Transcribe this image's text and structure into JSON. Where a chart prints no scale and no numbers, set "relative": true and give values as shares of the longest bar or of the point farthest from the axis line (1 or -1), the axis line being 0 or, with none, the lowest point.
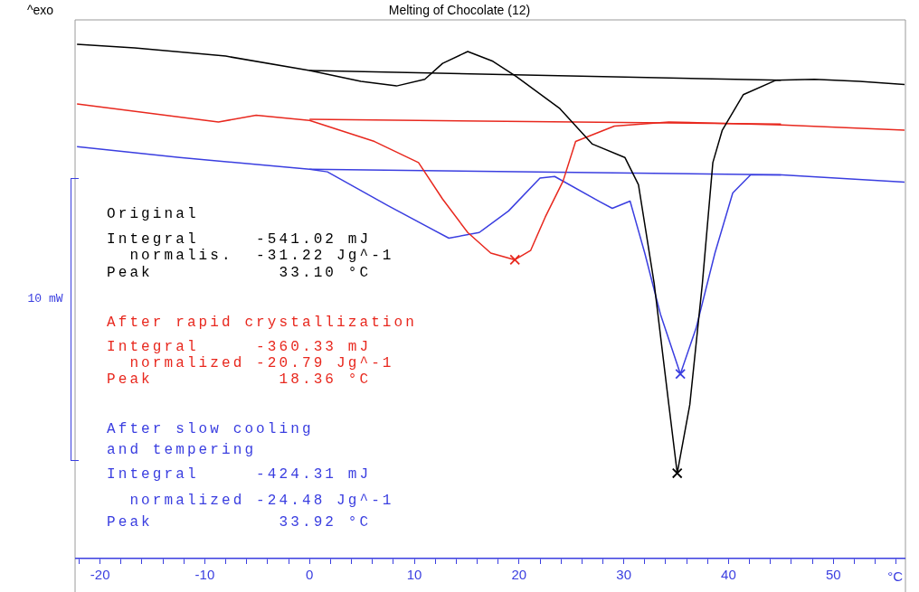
{
  "chart_data": {
    "type": "line",
    "title": "Melting of Chocolate (12)",
    "xlabel": "°C",
    "relative": true,
    "xlim": [
      -22.3,
      56.8
    ],
    "xticks": [
      {
        "value": -22,
        "label": null
      },
      -20,
      {
        "value": -18,
        "label": null
      },
      {
        "value": -16,
        "label": null
      },
      {
        "value": -14,
        "label": null
      },
      {
        "value": -12,
        "label": null
      },
      -10,
      {
        "value": -8,
        "label": null
      },
      {
        "value": -6,
        "label": null
      },
      {
        "value": -4,
        "label": null
      },
      {
        "value": -2,
        "label": null
      },
      0,
      {
        "value": 2,
        "label": null
      },
      {
        "value": 4,
        "label": null
      },
      {
        "value": 6,
        "label": null
      },
      {
        "value": 8,
        "label": null
      },
      10,
      {
        "value": 12,
        "label": null
      },
      {
        "value": 14,
        "label": null
      },
      {
        "value": 16,
        "label": null
      },
      {
        "value": 18,
        "label": null
      },
      20,
      {
        "value": 22,
        "label": null
      },
      {
        "value": 24,
        "label": null
      },
      {
        "value": 26,
        "label": null
      },
      {
        "value": 28,
        "label": null
      },
      30,
      {
        "value": 32,
        "label": null
      },
      {
        "value": 34,
        "label": null
      },
      {
        "value": 36,
        "label": null
      },
      {
        "value": 38,
        "label": null
      },
      40,
      {
        "value": 42,
        "label": null
      },
      {
        "value": 44,
        "label": null
      },
      {
        "value": 46,
        "label": null
      },
      {
        "value": 48,
        "label": null
      },
      50,
      {
        "value": 52,
        "label": null
      },
      {
        "value": 54,
        "label": null
      },
      {
        "value": 56,
        "label": null
      }
    ],
    "grid": false,
    "legend": false,
    "series": [
      {
        "color": "#000000",
        "x": [
          -22.2,
          -16.7,
          -8.0,
          0,
          4.9,
          8.3,
          11.0,
          12.7,
          15.1,
          17.5,
          19.7,
          23.9,
          27.0,
          30.1,
          31.4,
          32.9,
          34.3,
          35.1,
          36.3,
          37.5,
          38.5,
          39.4,
          41.4,
          44.5,
          48.2,
          52.5,
          56.8
        ],
        "values": [
          1.0,
          0.993,
          0.977,
          0.949,
          0.928,
          0.919,
          0.932,
          0.963,
          0.986,
          0.967,
          0.938,
          0.875,
          0.806,
          0.78,
          0.727,
          0.535,
          0.299,
          0.166,
          0.299,
          0.535,
          0.77,
          0.833,
          0.902,
          0.93,
          0.932,
          0.928,
          0.922
        ]
      },
      {
        "color": "#e8281e",
        "x": [
          -22.2,
          -8.7,
          -5.1,
          0,
          6.2,
          10.4,
          12.7,
          15.1,
          17.3,
          19.6,
          21.1,
          22.5,
          24.2,
          25.4,
          29.1,
          34.3,
          45.1,
          56.8
        ],
        "values": [
          0.884,
          0.849,
          0.862,
          0.852,
          0.811,
          0.77,
          0.699,
          0.634,
          0.594,
          0.581,
          0.599,
          0.664,
          0.734,
          0.811,
          0.841,
          0.849,
          0.843,
          0.833
        ]
      },
      {
        "color": "#3a3ee0",
        "x": [
          -22.2,
          -12.4,
          0,
          1.7,
          7.5,
          13.3,
          16.2,
          19.0,
          22.0,
          23.4,
          27.7,
          28.9,
          30.6,
          32.0,
          33.5,
          35.4,
          36.9,
          38.7,
          40.4,
          42.1,
          45.1,
          56.8
        ],
        "values": [
          0.801,
          0.78,
          0.757,
          0.752,
          0.686,
          0.623,
          0.634,
          0.676,
          0.74,
          0.743,
          0.694,
          0.681,
          0.695,
          0.594,
          0.475,
          0.359,
          0.448,
          0.594,
          0.711,
          0.746,
          0.746,
          0.732
        ]
      },
      {
        "color": "#000000",
        "x": [
          0,
          45
        ],
        "values": [
          0.949,
          0.93
        ]
      },
      {
        "color": "#e8281e",
        "x": [
          0,
          45
        ],
        "values": [
          0.854,
          0.845
        ]
      },
      {
        "color": "#3a3ee0",
        "x": [
          0,
          45
        ],
        "values": [
          0.757,
          0.746
        ]
      },
      {
        "color": "#000000",
        "marker": "cross",
        "x": [
          35.1
        ],
        "values": [
          0.166
        ]
      },
      {
        "color": "#e8281e",
        "marker": "cross",
        "x": [
          19.6
        ],
        "values": [
          0.581
        ]
      },
      {
        "color": "#3a3ee0",
        "marker": "cross",
        "x": [
          35.4
        ],
        "values": [
          0.359
        ]
      }
    ],
    "annotations": [
      "^exo",
      "10 mW",
      "Original",
      "Integral     -541.02 mJ",
      "  normalis.  -31.22 Jg^-1",
      "Peak           33.10 °C",
      "After rapid crystallization",
      "Integral     -360.33 mJ",
      "  normalized -20.79 Jg^-1",
      "Peak           18.36 °C",
      "After slow cooling",
      "and tempering",
      "Integral     -424.31 mJ",
      "  normalized -24.48 Jg^-1",
      "Peak           33.92 °C"
    ]
  }
}
